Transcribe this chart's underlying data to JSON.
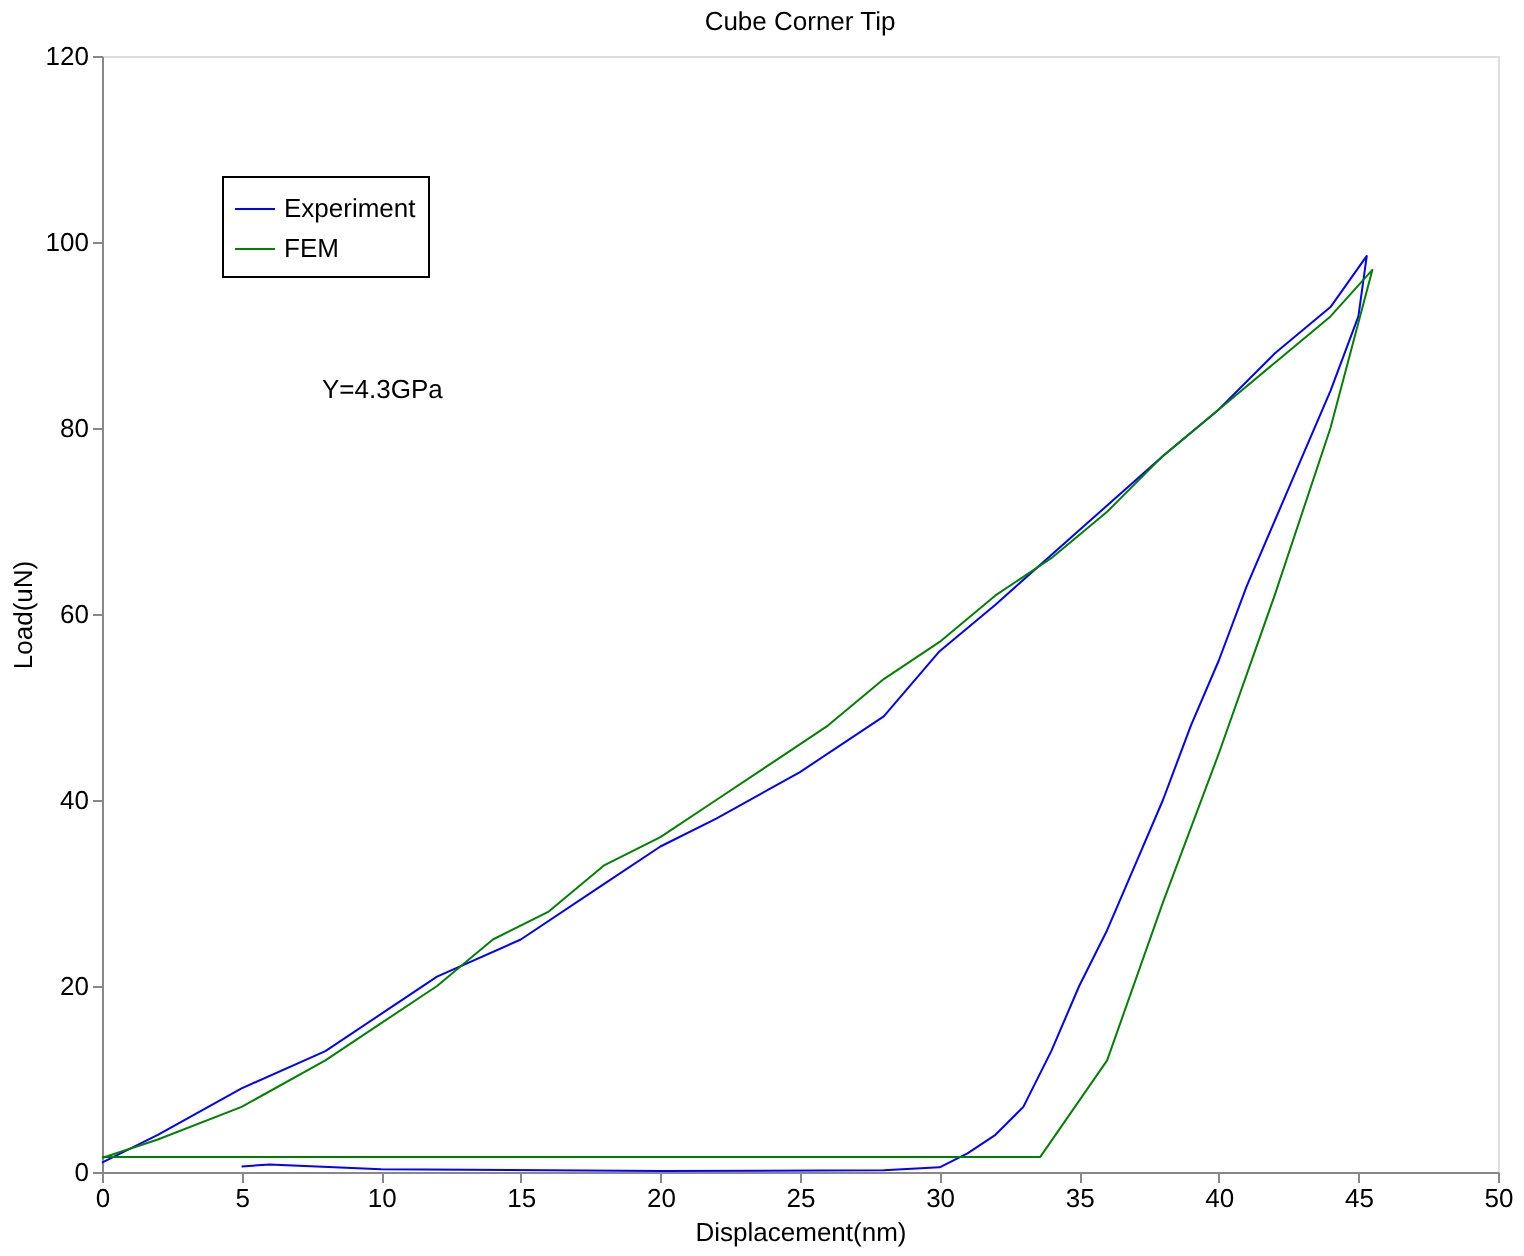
{
  "chart_data": {
    "type": "line",
    "title": "Cube Corner Tip",
    "xlabel": "Displacement(nm)",
    "ylabel": "Load(uN)",
    "xlim": [
      0,
      50
    ],
    "xticks": [
      0,
      5,
      10,
      15,
      20,
      25,
      30,
      35,
      40,
      45,
      50
    ],
    "ylim": [
      0,
      120
    ],
    "yticks": [
      0,
      20,
      40,
      60,
      80,
      100,
      120
    ],
    "grid": false,
    "legend": "top left",
    "annotations": [
      "Y=4.3GPa"
    ],
    "series": [
      {
        "name": "Experiment",
        "color": "#0000ff",
        "x": [
          0,
          2,
          5,
          8,
          10,
          12,
          15,
          18,
          20,
          22,
          25,
          28,
          30,
          32,
          35,
          38,
          40,
          42,
          44,
          45.3,
          45,
          44,
          43,
          42,
          41,
          40,
          39,
          38,
          37,
          36,
          35,
          34,
          33,
          32,
          31,
          30,
          28,
          20,
          10,
          6,
          5
        ],
        "values": [
          1,
          4,
          9,
          13,
          17,
          21,
          25,
          31,
          35,
          38,
          43,
          49,
          56,
          61,
          69,
          77,
          82,
          88,
          93,
          98.5,
          92,
          84,
          77,
          70,
          63,
          55,
          48,
          40,
          33,
          26,
          20,
          13,
          7,
          4,
          2,
          0.5,
          0.2,
          0.1,
          0.3,
          0.8,
          0.6
        ]
      },
      {
        "name": "FEM",
        "color": "#008000",
        "x": [
          0,
          2,
          5,
          8,
          10,
          12,
          14,
          16,
          18,
          20,
          22,
          24,
          26,
          28,
          30,
          32,
          34,
          36,
          38,
          40,
          42,
          44,
          45.5,
          44,
          42,
          40,
          38,
          36,
          33.6,
          0
        ],
        "values": [
          1.5,
          3.5,
          7,
          12,
          16,
          20,
          25,
          28,
          33,
          36,
          40,
          44,
          48,
          53,
          57,
          62,
          66,
          71,
          77,
          82,
          87,
          92,
          97,
          80,
          62,
          45,
          29,
          12,
          1.6,
          1.6
        ]
      }
    ]
  }
}
